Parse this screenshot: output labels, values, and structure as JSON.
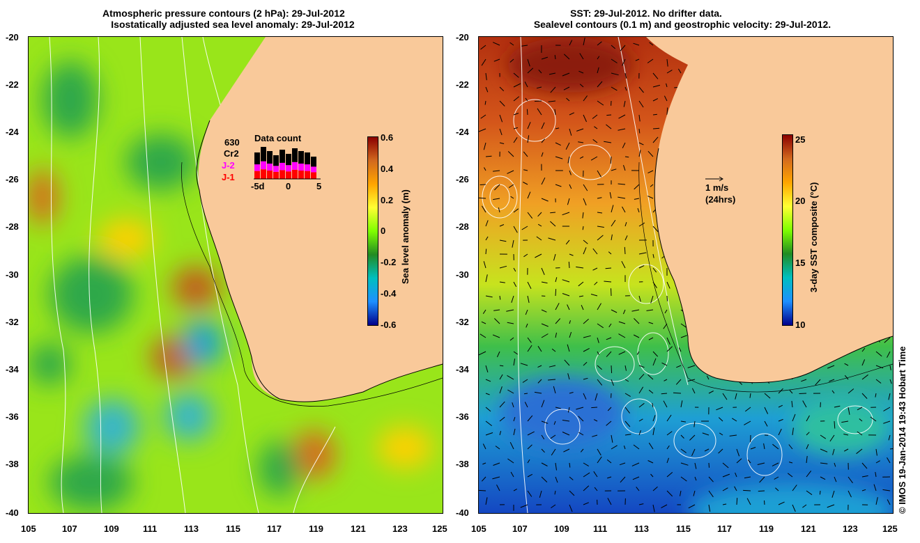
{
  "left_panel": {
    "title_line1": "Atmospheric pressure contours (2 hPa): 29-Jul-2012",
    "title_line2": "Isostatically adjusted sea level anomaly: 29-Jul-2012",
    "y_ticks": [
      "-20",
      "-22",
      "-24",
      "-26",
      "-28",
      "-30",
      "-32",
      "-34",
      "-36",
      "-38",
      "-40"
    ],
    "x_ticks": [
      "105",
      "107",
      "109",
      "111",
      "113",
      "115",
      "117",
      "119",
      "121",
      "123",
      "125"
    ],
    "colorbar": {
      "title": "Sea level anomaly (m)",
      "ticks": [
        "0.6",
        "0.4",
        "0.2",
        "0",
        "-0.2",
        "-0.4",
        "-0.6"
      ],
      "colors": [
        "#8b0000",
        "#d2691e",
        "#ffa500",
        "#ffff33",
        "#7fff00",
        "#228b22",
        "#00bfbf",
        "#1e90ff",
        "#00008b"
      ]
    },
    "inset": {
      "title": "Data count",
      "count": "630",
      "label_cr2": "Cr2",
      "label_j2": "J-2",
      "label_j1": "J-1",
      "x_ticks": [
        "-5d",
        "0",
        "5"
      ],
      "colors": {
        "cr2": "#000000",
        "j2": "#ff00ff",
        "j1": "#ff0000"
      }
    }
  },
  "right_panel": {
    "title_line1": "SST: 29-Jul-2012. No drifter data.",
    "title_line2": "Sealevel contours (0.1 m) and geostrophic velocity: 29-Jul-2012.",
    "y_ticks": [
      "-20",
      "-22",
      "-24",
      "-26",
      "-28",
      "-30",
      "-32",
      "-34",
      "-36",
      "-38",
      "-40"
    ],
    "x_ticks": [
      "105",
      "107",
      "109",
      "111",
      "113",
      "115",
      "117",
      "119",
      "121",
      "123",
      "125"
    ],
    "colorbar": {
      "title": "3-day SST composite (°C)",
      "ticks": [
        "25",
        "20",
        "15",
        "10"
      ],
      "colors": [
        "#8b0000",
        "#d2691e",
        "#ffa500",
        "#ffff33",
        "#7fff00",
        "#228b22",
        "#00bfbf",
        "#1e90ff",
        "#00008b"
      ]
    },
    "velocity_legend": {
      "speed": "1 m/s",
      "duration": "(24hrs)"
    }
  },
  "credit": "© IMOS 19-Jan-2014 19:43 Hobart Time",
  "colors": {
    "land": "#f9c99a",
    "coastline": "#000000",
    "contour": "#ffffff"
  }
}
